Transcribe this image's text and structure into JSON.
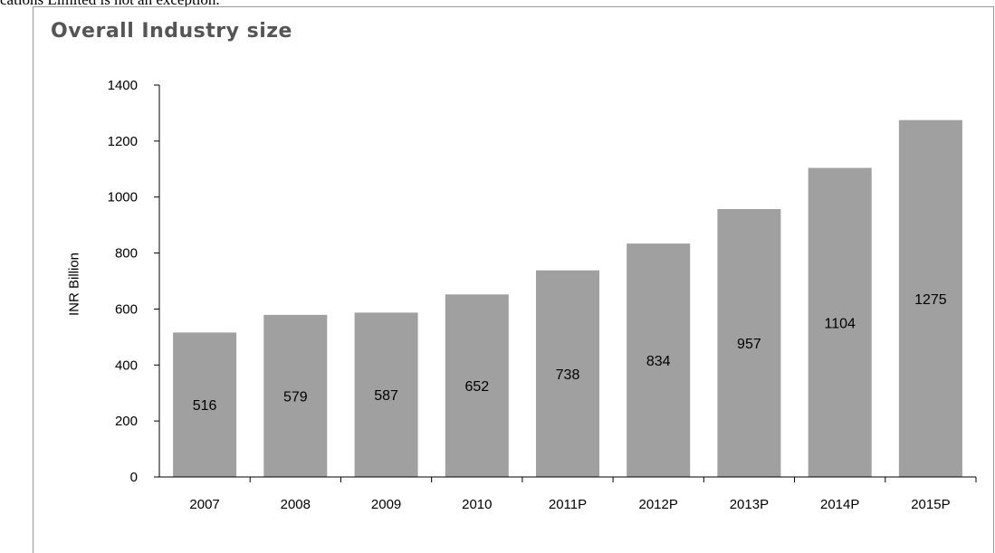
{
  "page": {
    "top_text": "cations Limited is not an exception."
  },
  "chart_data": {
    "type": "bar",
    "title": "Overall Industry size",
    "xlabel": "",
    "ylabel": "INR Billion",
    "categories": [
      "2007",
      "2008",
      "2009",
      "2010",
      "2011P",
      "2012P",
      "2013P",
      "2014P",
      "2015P"
    ],
    "values": [
      516,
      579,
      587,
      652,
      738,
      834,
      957,
      1104,
      1275
    ],
    "data_labels": [
      "516",
      "579",
      "587",
      "652",
      "738",
      "834",
      "957",
      "1104",
      "1275"
    ],
    "ylim": [
      0,
      1400
    ],
    "yticks": [
      0,
      200,
      400,
      600,
      800,
      1000,
      1200,
      1400
    ],
    "bar_color": "#a0a0a0",
    "grid": false,
    "legend": "none"
  }
}
